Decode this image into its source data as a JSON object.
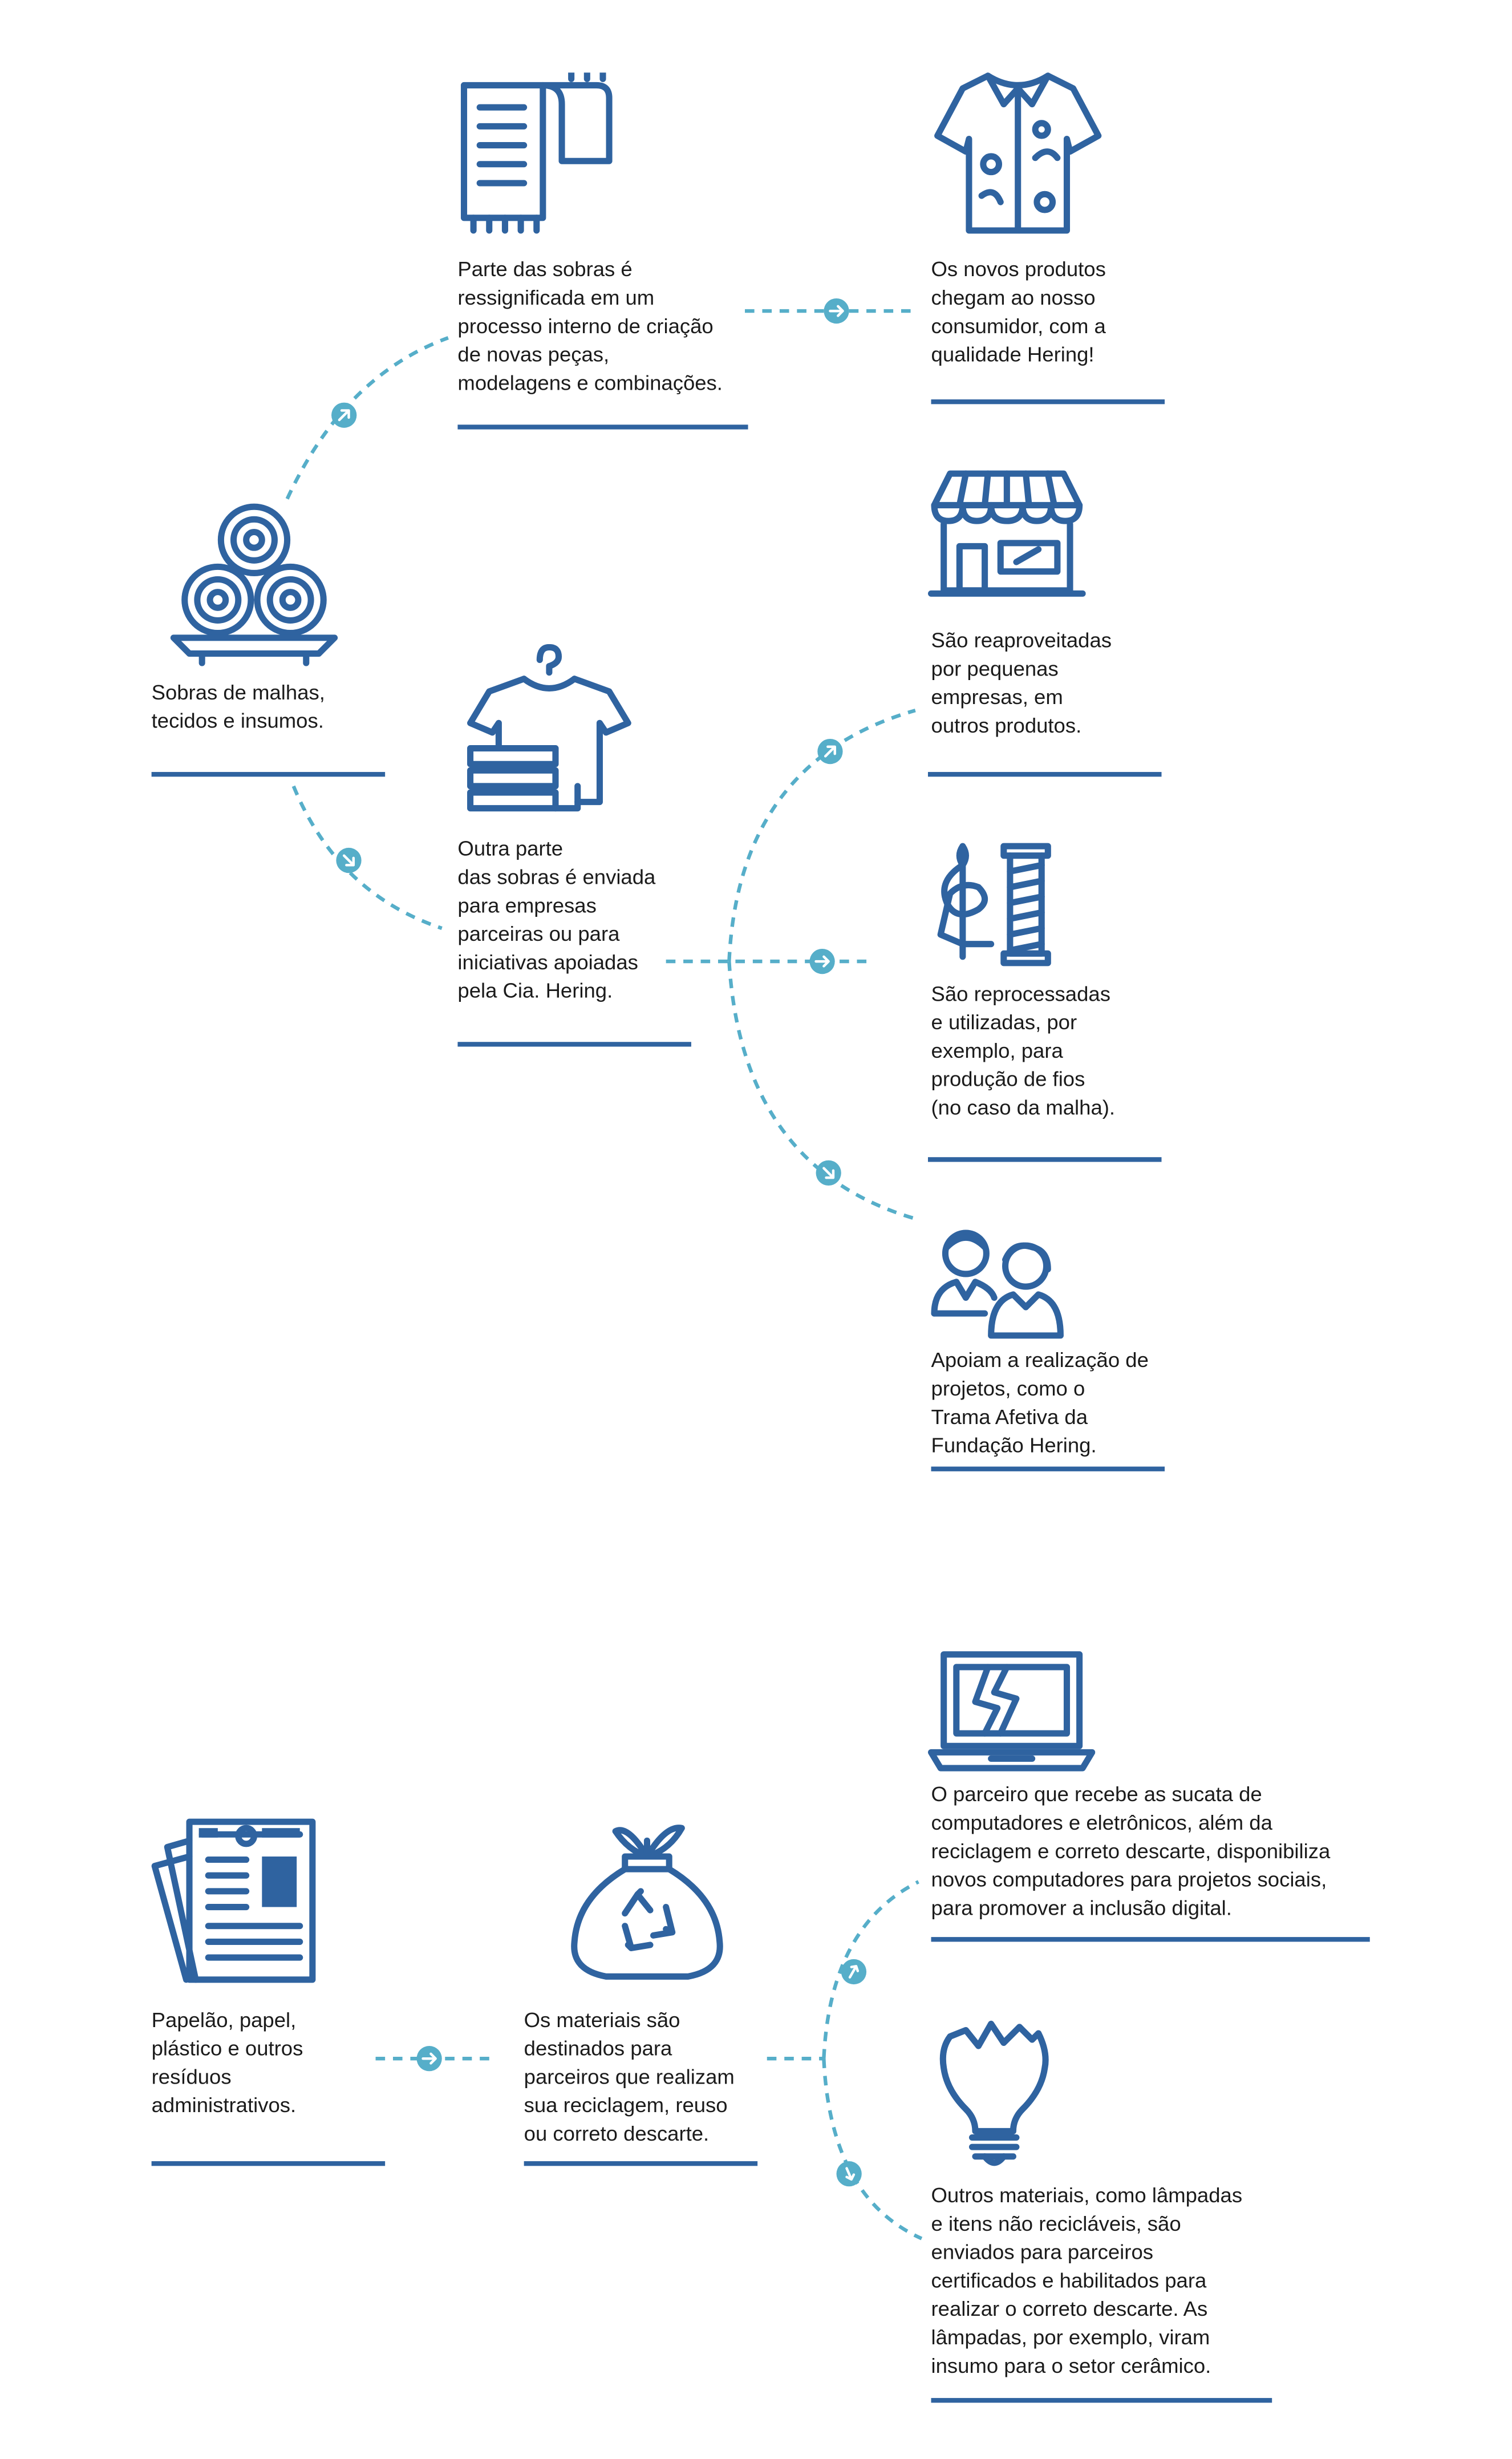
{
  "colors": {
    "icon": "#2f63a0",
    "connector": "#56aec9",
    "text": "#1b1b1b",
    "background": "#ffffff"
  },
  "nodes": {
    "sobras": {
      "icon": "fabric-rolls-icon",
      "text": "Sobras de malhas,\ntecidos e insumos."
    },
    "ressignificada": {
      "icon": "scarf-icon",
      "text": "Parte das sobras é\nressignificada em um\nprocesso interno de criação\nde novas peças,\nmodelagens e combinações."
    },
    "novos_produtos": {
      "icon": "shirt-icon",
      "text": "Os novos produtos\nchegam ao nosso\nconsumidor, com a\nqualidade Hering!"
    },
    "outra_parte": {
      "icon": "tshirt-hanger-icon",
      "text": "Outra parte\ndas sobras é enviada\npara empresas\nparceiras ou para\niniciativas apoiadas\npela Cia. Hering."
    },
    "reaproveitadas": {
      "icon": "store-icon",
      "text": "São reaproveitadas\npor pequenas\nempresas, em\noutros produtos."
    },
    "reprocessadas": {
      "icon": "needle-thread-icon",
      "text": "São reprocessadas\ne utilizadas, por\nexemplo,  para\nprodução de fios\n(no caso da malha)."
    },
    "apoiam": {
      "icon": "people-icon",
      "text": "Apoiam a realização de\nprojetos, como o\nTrama Afetiva da\nFundação Hering."
    },
    "papelao": {
      "icon": "documents-icon",
      "text": "Papelão, papel,\nplástico e outros\nresíduos\nadministrativos."
    },
    "materiais": {
      "icon": "recycle-bag-icon",
      "text": "Os materiais são\ndestinados para\nparceiros que realizam\nsua reciclagem, reuso\nou correto descarte."
    },
    "parceiro": {
      "icon": "broken-laptop-icon",
      "text": "O parceiro que recebe as sucata de\ncomputadores e eletrônicos, além da\nreciclagem e correto descarte, disponibiliza\nnovos computadores para projetos sociais,\npara promover a inclusão digital."
    },
    "lampadas": {
      "icon": "broken-bulb-icon",
      "text": "Outros materiais, como lâmpadas\ne itens não recicláveis, são\nenviados para parceiros\ncertificados e habilitados para\nrealizar o correto descarte.  As\nlâmpadas, por exemplo, viram\ninsumo para o setor cerâmico."
    }
  }
}
